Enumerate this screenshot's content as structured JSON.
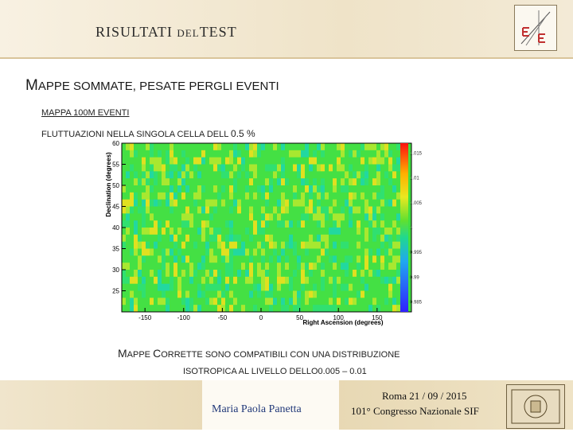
{
  "header": {
    "title_main": "RISULTATI ",
    "title_small": "DEL",
    "title_end": "TEST"
  },
  "slide": {
    "title_cap": "M",
    "title_rest": "APPE SOMMATE, PESATE PERGLI EVENTI",
    "sub1": "MAPPA 100M EVENTI",
    "sub2_a": "FLUTTUAZIONI NELLA SINGOLA CELLA DELL ",
    "sub2_b": "0.5 %"
  },
  "note": {
    "line1_a": "M",
    "line1_b": "APPE ",
    "line1_c": "C",
    "line1_d": "ORRETTE SONO COMPATIBILI CON UNA DISTRIBUZIONE",
    "line2": "ISOTROPICA AL LIVELLO DELLO0.005 – 0.01"
  },
  "footer": {
    "author": "Maria Paola Panetta",
    "conf_date": "Roma 21 / 09 / 2015",
    "conf_name": "101° Congresso Nazionale SIF"
  },
  "chart_data": {
    "type": "heatmap",
    "xlabel": "Right Ascension (degrees)",
    "ylabel": "Declination (degrees)",
    "x_ticks": [
      -150,
      -100,
      -50,
      0,
      50,
      100,
      150
    ],
    "y_ticks": [
      25,
      30,
      35,
      40,
      45,
      50,
      55,
      60
    ],
    "xlim": [
      -180,
      180
    ],
    "ylim": [
      20,
      60
    ],
    "colorbar_ticks": [
      "1.015",
      "1.01",
      "1.005",
      "1",
      "0.995",
      "0.99",
      "0.985"
    ],
    "colorbar_range": [
      0.983,
      1.017
    ],
    "dominant_value": 1.0,
    "colors": {
      "low": "#2040ff",
      "mid_low": "#20d8c0",
      "mid": "#40e040",
      "mid_high": "#d8e020",
      "high": "#ff2020"
    }
  }
}
